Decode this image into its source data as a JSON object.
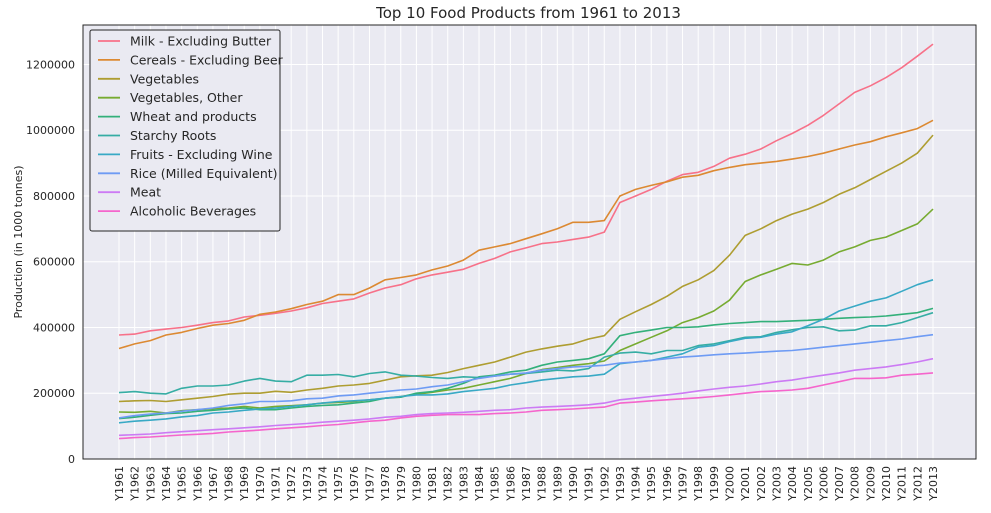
{
  "chart_data": {
    "type": "line",
    "title": "Top 10 Food Products from 1961 to 2013",
    "xlabel": "",
    "ylabel": "Production (in 1000 tonnes)",
    "ylim": [
      0,
      1320000
    ],
    "yticks": [
      0,
      200000,
      400000,
      600000,
      800000,
      1000000,
      1200000
    ],
    "ytick_labels": [
      "0",
      "200000",
      "400000",
      "600000",
      "800000",
      "1000000",
      "1200000"
    ],
    "grid": true,
    "legend_position": "top-left",
    "x": [
      "Y1961",
      "Y1962",
      "Y1963",
      "Y1964",
      "Y1965",
      "Y1966",
      "Y1967",
      "Y1968",
      "Y1969",
      "Y1970",
      "Y1971",
      "Y1972",
      "Y1973",
      "Y1974",
      "Y1975",
      "Y1976",
      "Y1977",
      "Y1978",
      "Y1979",
      "Y1980",
      "Y1981",
      "Y1982",
      "Y1983",
      "Y1984",
      "Y1985",
      "Y1986",
      "Y1987",
      "Y1988",
      "Y1989",
      "Y1990",
      "Y1991",
      "Y1992",
      "Y1993",
      "Y1994",
      "Y1995",
      "Y1996",
      "Y1997",
      "Y1998",
      "Y1999",
      "Y2000",
      "Y2001",
      "Y2002",
      "Y2003",
      "Y2004",
      "Y2005",
      "Y2006",
      "Y2007",
      "Y2008",
      "Y2009",
      "Y2010",
      "Y2011",
      "Y2012",
      "Y2013"
    ],
    "series": [
      {
        "name": "Milk - Excluding Butter",
        "color": "#f77189",
        "values": [
          377000,
          380000,
          390000,
          395000,
          400000,
          407000,
          415000,
          420000,
          432000,
          437000,
          443000,
          450000,
          460000,
          473000,
          480000,
          487000,
          505000,
          520000,
          530000,
          548000,
          560000,
          568000,
          577000,
          595000,
          610000,
          630000,
          642000,
          655000,
          660000,
          668000,
          675000,
          690000,
          780000,
          800000,
          820000,
          845000,
          865000,
          872000,
          890000,
          915000,
          927000,
          943000,
          968000,
          990000,
          1015000,
          1045000,
          1080000,
          1115000,
          1135000,
          1160000,
          1190000,
          1225000,
          1262000
        ]
      },
      {
        "name": "Cereals - Excluding Beer",
        "color": "#dc8932",
        "values": [
          336000,
          350000,
          360000,
          377000,
          385000,
          397000,
          407000,
          412000,
          422000,
          440000,
          447000,
          457000,
          470000,
          480000,
          500000,
          500000,
          520000,
          545000,
          552000,
          560000,
          575000,
          587000,
          605000,
          635000,
          645000,
          655000,
          670000,
          685000,
          700000,
          720000,
          720000,
          725000,
          800000,
          820000,
          832000,
          843000,
          857000,
          863000,
          877000,
          887000,
          895000,
          900000,
          905000,
          912000,
          920000,
          930000,
          943000,
          955000,
          965000,
          980000,
          992000,
          1005000,
          1030000
        ]
      },
      {
        "name": "Vegetables",
        "color": "#ae9d31",
        "values": [
          175000,
          177000,
          178000,
          175000,
          180000,
          185000,
          190000,
          197000,
          200000,
          200000,
          206000,
          203000,
          210000,
          215000,
          222000,
          225000,
          230000,
          240000,
          250000,
          253000,
          255000,
          263000,
          275000,
          285000,
          295000,
          310000,
          325000,
          335000,
          343000,
          350000,
          365000,
          375000,
          425000,
          448000,
          470000,
          495000,
          525000,
          545000,
          573000,
          620000,
          680000,
          700000,
          725000,
          745000,
          760000,
          780000,
          805000,
          825000,
          850000,
          875000,
          900000,
          930000,
          985000
        ]
      },
      {
        "name": "Vegetables, Other",
        "color": "#77ab31",
        "values": [
          143000,
          142000,
          145000,
          140000,
          147000,
          150000,
          153000,
          155000,
          160000,
          155000,
          160000,
          162000,
          165000,
          170000,
          172000,
          175000,
          180000,
          185000,
          190000,
          197000,
          203000,
          210000,
          215000,
          225000,
          235000,
          245000,
          260000,
          272000,
          278000,
          285000,
          290000,
          298000,
          330000,
          350000,
          370000,
          390000,
          415000,
          430000,
          450000,
          483000,
          540000,
          560000,
          577000,
          595000,
          590000,
          605000,
          630000,
          645000,
          665000,
          675000,
          695000,
          715000,
          760000
        ]
      },
      {
        "name": "Wheat and products",
        "color": "#33b07a",
        "values": [
          123000,
          127000,
          133000,
          138000,
          140000,
          145000,
          148000,
          152000,
          155000,
          150000,
          150000,
          155000,
          160000,
          163000,
          165000,
          170000,
          175000,
          185000,
          188000,
          200000,
          205000,
          215000,
          230000,
          250000,
          255000,
          265000,
          270000,
          285000,
          295000,
          300000,
          305000,
          320000,
          375000,
          385000,
          392000,
          400000,
          400000,
          402000,
          408000,
          412000,
          415000,
          418000,
          418000,
          420000,
          422000,
          425000,
          428000,
          430000,
          432000,
          435000,
          440000,
          445000,
          458000
        ]
      },
      {
        "name": "Starchy Roots",
        "color": "#36ada4",
        "values": [
          202000,
          205000,
          200000,
          198000,
          215000,
          222000,
          222000,
          225000,
          237000,
          245000,
          237000,
          235000,
          255000,
          255000,
          257000,
          250000,
          260000,
          265000,
          255000,
          252000,
          248000,
          245000,
          250000,
          248000,
          252000,
          258000,
          260000,
          265000,
          270000,
          268000,
          275000,
          310000,
          322000,
          325000,
          320000,
          330000,
          330000,
          345000,
          350000,
          360000,
          370000,
          372000,
          385000,
          393000,
          400000,
          402000,
          390000,
          392000,
          405000,
          405000,
          415000,
          430000,
          445000
        ]
      },
      {
        "name": "Fruits - Excluding Wine",
        "color": "#38a9c5",
        "values": [
          110000,
          115000,
          118000,
          122000,
          128000,
          132000,
          140000,
          143000,
          148000,
          152000,
          155000,
          160000,
          165000,
          170000,
          175000,
          177000,
          180000,
          185000,
          190000,
          195000,
          195000,
          198000,
          205000,
          210000,
          215000,
          225000,
          232000,
          240000,
          245000,
          250000,
          252000,
          258000,
          290000,
          295000,
          300000,
          310000,
          320000,
          340000,
          345000,
          357000,
          367000,
          370000,
          380000,
          387000,
          405000,
          425000,
          450000,
          465000,
          480000,
          490000,
          510000,
          530000,
          545000
        ]
      },
      {
        "name": "Rice (Milled Equivalent)",
        "color": "#6e9bf4",
        "values": [
          125000,
          132000,
          137000,
          140000,
          145000,
          150000,
          155000,
          163000,
          168000,
          175000,
          175000,
          177000,
          183000,
          185000,
          192000,
          195000,
          200000,
          205000,
          210000,
          213000,
          220000,
          225000,
          235000,
          245000,
          252000,
          258000,
          262000,
          270000,
          275000,
          280000,
          282000,
          285000,
          292000,
          295000,
          300000,
          305000,
          310000,
          313000,
          317000,
          320000,
          322000,
          325000,
          328000,
          330000,
          335000,
          340000,
          345000,
          350000,
          355000,
          360000,
          365000,
          372000,
          378000
        ]
      },
      {
        "name": "Meat",
        "color": "#cc7af4",
        "values": [
          72000,
          74000,
          76000,
          80000,
          83000,
          86000,
          89000,
          92000,
          95000,
          98000,
          102000,
          105000,
          108000,
          112000,
          115000,
          118000,
          122000,
          127000,
          130000,
          135000,
          138000,
          140000,
          142000,
          145000,
          148000,
          150000,
          155000,
          158000,
          160000,
          162000,
          165000,
          170000,
          180000,
          185000,
          190000,
          195000,
          200000,
          207000,
          213000,
          218000,
          222000,
          228000,
          235000,
          240000,
          248000,
          255000,
          262000,
          270000,
          275000,
          280000,
          287000,
          295000,
          305000
        ]
      },
      {
        "name": "Alcoholic Beverages",
        "color": "#f565cc",
        "values": [
          62000,
          65000,
          67000,
          70000,
          73000,
          75000,
          78000,
          82000,
          85000,
          88000,
          92000,
          95000,
          98000,
          102000,
          105000,
          110000,
          115000,
          118000,
          125000,
          130000,
          133000,
          135000,
          135000,
          135000,
          138000,
          140000,
          143000,
          148000,
          150000,
          152000,
          155000,
          158000,
          170000,
          173000,
          177000,
          180000,
          183000,
          186000,
          190000,
          195000,
          200000,
          205000,
          207000,
          210000,
          215000,
          225000,
          235000,
          245000,
          245000,
          247000,
          255000,
          258000,
          262000
        ]
      }
    ]
  }
}
